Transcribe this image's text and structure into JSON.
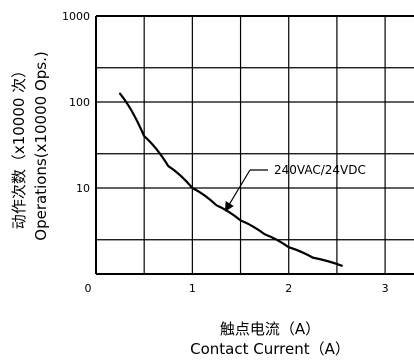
{
  "chart_data": {
    "type": "line",
    "x_axis": {
      "title_line1": "触点电流（A）",
      "title_line2": "Contact Current（A）",
      "range": [
        0,
        3.3
      ],
      "ticks": [
        0,
        1,
        2,
        3
      ],
      "tick_labels": [
        "0",
        "1",
        "2",
        "3"
      ],
      "grid_step": 0.5
    },
    "y_axis": {
      "title_line1": "动作次数（x10000 次）",
      "title_line2": "Operations(x10000 Ops.)",
      "scale": "log",
      "range": [
        1,
        1000
      ],
      "ticks": [
        10,
        100,
        1000
      ],
      "tick_labels": [
        "10",
        "100",
        "1000"
      ],
      "grid_values": [
        1,
        2.5,
        10,
        25,
        100,
        250,
        1000
      ]
    },
    "grid": true,
    "series": [
      {
        "name": "240VAC/24VDC",
        "x": [
          0.25,
          0.5,
          0.75,
          1.0,
          1.25,
          1.5,
          1.75,
          2.0,
          2.25,
          2.55
        ],
        "y": [
          125,
          40,
          18,
          10,
          6.3,
          4.2,
          2.9,
          2.05,
          1.55,
          1.25
        ]
      }
    ],
    "annotation": {
      "label": "240VAC/24VDC",
      "arrow_target_x": 1.35,
      "arrow_target_y": 5.6
    },
    "colors": {
      "line": "#000000",
      "grid": "#000000",
      "background": "#ffffff"
    }
  }
}
